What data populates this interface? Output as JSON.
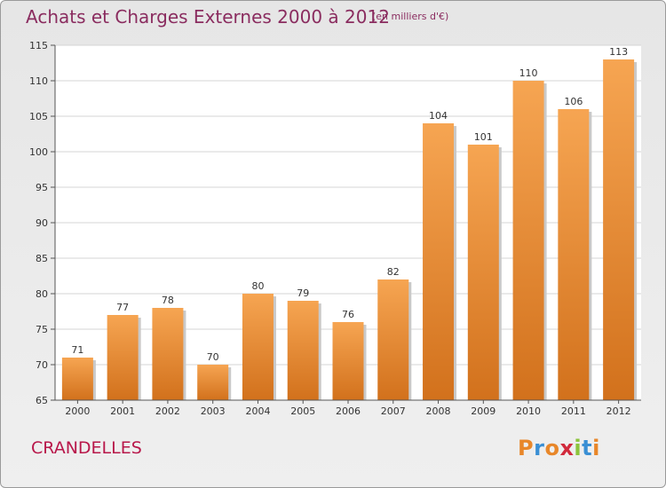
{
  "chart_data": {
    "type": "bar",
    "title": "Achats et Charges Externes 2000 à 2012",
    "subtitle": "(en milliers d'€)",
    "categories": [
      "2000",
      "2001",
      "2002",
      "2003",
      "2004",
      "2005",
      "2006",
      "2007",
      "2008",
      "2009",
      "2010",
      "2011",
      "2012"
    ],
    "values": [
      71,
      77,
      78,
      70,
      80,
      79,
      76,
      82,
      104,
      101,
      110,
      106,
      113
    ],
    "ylim": [
      65,
      115
    ],
    "yticks": [
      65,
      70,
      75,
      80,
      85,
      90,
      95,
      100,
      105,
      110,
      115
    ],
    "grid": true,
    "bar_color": "#f0963c",
    "bar_color_dark": "#d2711c"
  },
  "footer": {
    "city": "CRANDELLES",
    "brand": "Proxiti",
    "brand_colors": [
      "#e8872a",
      "#3a8fd4",
      "#e8872a",
      "#d12a3c",
      "#8cc43c",
      "#3a8fd4",
      "#e8872a"
    ]
  }
}
